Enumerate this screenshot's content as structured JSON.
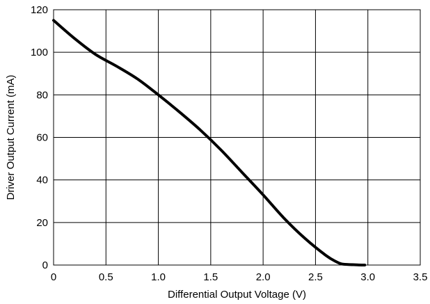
{
  "chart_data": {
    "type": "line",
    "title": "",
    "xlabel": "Differential Output Voltage (V)",
    "ylabel": "Driver Output Current (mA)",
    "xlim": [
      0,
      3.5
    ],
    "ylim": [
      0,
      120
    ],
    "xticks": [
      0,
      0.5,
      1.0,
      1.5,
      2.0,
      2.5,
      3.0,
      3.5
    ],
    "xtick_labels": [
      "0",
      "0.5",
      "1.0",
      "1.5",
      "2.0",
      "2.5",
      "3.0",
      "3.5"
    ],
    "yticks": [
      0,
      20,
      40,
      60,
      80,
      100,
      120
    ],
    "ytick_labels": [
      "0",
      "20",
      "40",
      "60",
      "80",
      "100",
      "120"
    ],
    "grid": true,
    "line_color": "#000000",
    "series": [
      {
        "x": [
          0,
          0.2,
          0.4,
          0.6,
          0.8,
          1.0,
          1.2,
          1.4,
          1.6,
          1.8,
          2.0,
          2.2,
          2.4,
          2.6,
          2.7,
          2.75,
          2.8,
          2.9,
          2.97
        ],
        "y": [
          115,
          106.5,
          99,
          93.5,
          87.5,
          80,
          72,
          63.5,
          54,
          43.5,
          33,
          22,
          12.5,
          4.5,
          1.5,
          0.5,
          0.3,
          0.1,
          0
        ]
      }
    ]
  }
}
